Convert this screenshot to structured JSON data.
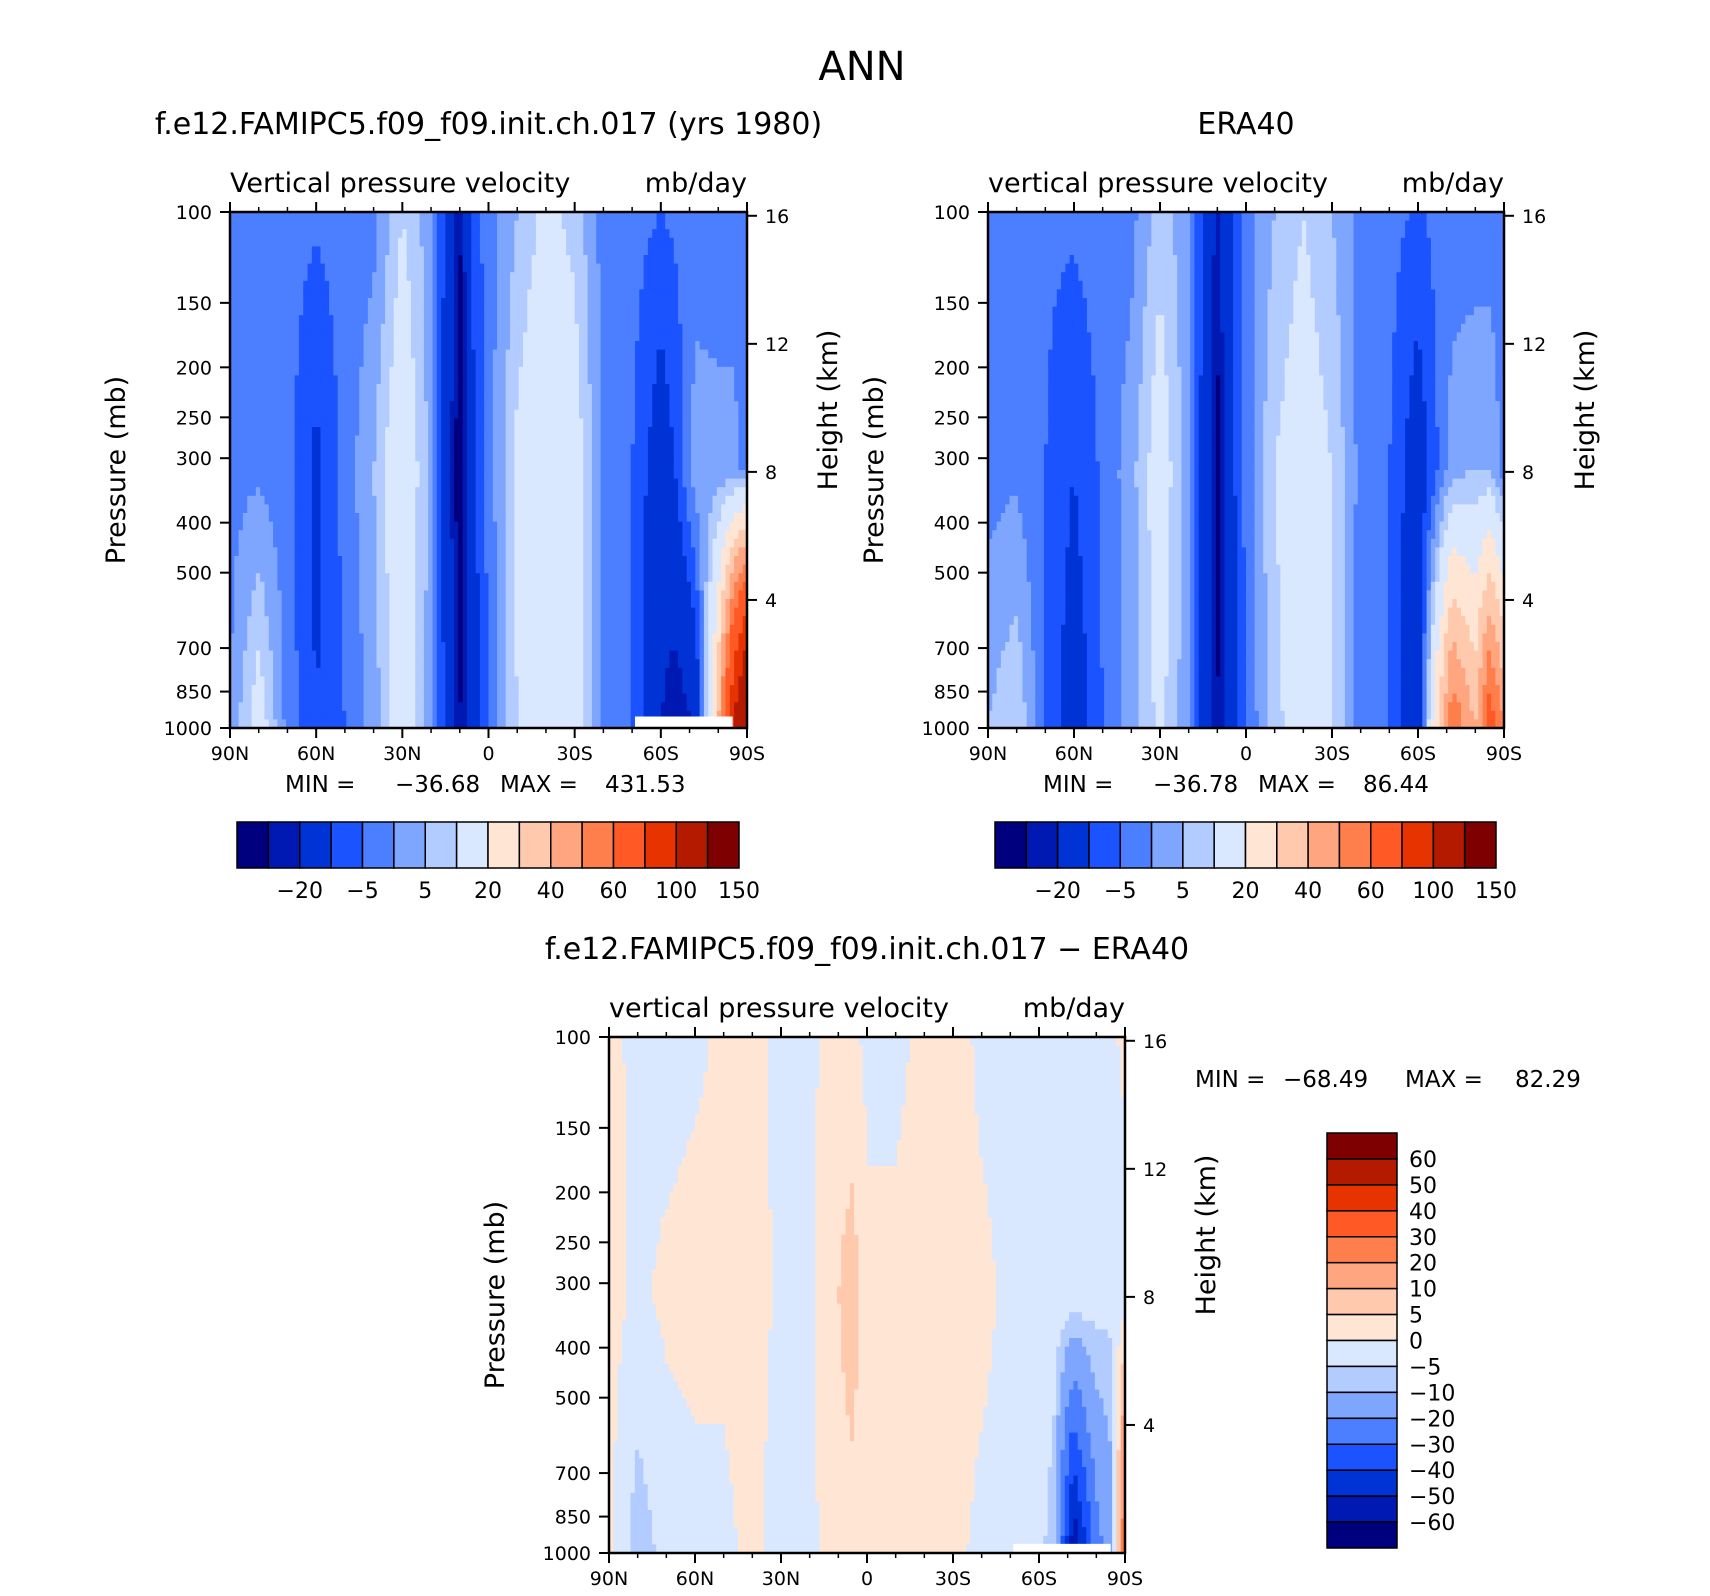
{
  "figure_title": "ANN",
  "palettes": {
    "field": [
      "#00007f",
      "#0019b2",
      "#0033d6",
      "#1a53ff",
      "#4c7fff",
      "#7fa6ff",
      "#b3ccff",
      "#d9e8ff",
      "#ffe6d4",
      "#ffc9ad",
      "#ffa680",
      "#ff7f4c",
      "#ff5a26",
      "#e63300",
      "#b31a00",
      "#7f0000"
    ],
    "diff": [
      "#00007f",
      "#0019b2",
      "#0033d6",
      "#1a53ff",
      "#4c7fff",
      "#7fa6ff",
      "#b3ccff",
      "#d9e8ff",
      "#ffe6d4",
      "#ffc9ad",
      "#ffa680",
      "#ff7f4c",
      "#ff5a26",
      "#e63300",
      "#b31a00",
      "#7f0000"
    ]
  },
  "chart_data": [
    {
      "type": "heatmap",
      "panel": "model",
      "title": "f.e12.FAMIPC5.f09_f09.init.ch.017 (yrs 1980)",
      "variable_label": "Vertical pressure velocity",
      "units_label": "mb/day",
      "xlabel": "",
      "ylabel": "Pressure (mb)",
      "ylabel_right": "Height (km)",
      "x_ticks": [
        "90N",
        "60N",
        "30N",
        "0",
        "30S",
        "60S",
        "90S"
      ],
      "x_tick_values": [
        90,
        60,
        30,
        0,
        -30,
        -60,
        -90
      ],
      "xlim": [
        90,
        -90
      ],
      "y_ticks": [
        100,
        150,
        200,
        250,
        300,
        400,
        500,
        700,
        850,
        1000
      ],
      "ylim": [
        1000,
        100
      ],
      "y_scale": "log",
      "height_ticks": [
        4,
        8,
        12,
        16
      ],
      "stats": {
        "min": "−36.68",
        "max": "431.53"
      },
      "colorbar": {
        "orientation": "horizontal",
        "labels": [
          "−20",
          "−5",
          "5",
          "20",
          "40",
          "60",
          "100",
          "150"
        ]
      },
      "columns": [
        {
          "lat": 90,
          "up": -3,
          "mid": -2,
          "low": 0
        },
        {
          "lat": 80,
          "up": -3,
          "mid": -1,
          "low": 15
        },
        {
          "lat": 70,
          "up": -3,
          "mid": -3,
          "low": -2
        },
        {
          "lat": 60,
          "up": -4,
          "mid": -12,
          "low": -10
        },
        {
          "lat": 50,
          "up": -3,
          "mid": -3,
          "low": -5
        },
        {
          "lat": 40,
          "up": -2,
          "mid": 5,
          "low": 2
        },
        {
          "lat": 30,
          "up": 10,
          "mid": 18,
          "low": 15
        },
        {
          "lat": 20,
          "up": 2,
          "mid": 3,
          "low": 2
        },
        {
          "lat": 10,
          "up": -25,
          "mid": -30,
          "low": -25
        },
        {
          "lat": 5,
          "up": -8,
          "mid": -10,
          "low": -15
        },
        {
          "lat": 0,
          "up": -2,
          "mid": -3,
          "low": -5
        },
        {
          "lat": -10,
          "up": 5,
          "mid": 12,
          "low": 10
        },
        {
          "lat": -20,
          "up": 12,
          "mid": 18,
          "low": 18
        },
        {
          "lat": -30,
          "up": 8,
          "mid": 15,
          "low": 15
        },
        {
          "lat": -40,
          "up": -2,
          "mid": -2,
          "low": -3
        },
        {
          "lat": -50,
          "up": -3,
          "mid": -5,
          "low": -5
        },
        {
          "lat": -60,
          "up": -5,
          "mid": -15,
          "low": -20
        },
        {
          "lat": -65,
          "up": -4,
          "mid": -10,
          "low": -25
        },
        {
          "lat": -72,
          "up": -3,
          "mid": 3,
          "low": -20
        },
        {
          "lat": -80,
          "up": -3,
          "mid": 2,
          "low": 40
        },
        {
          "lat": -85,
          "up": -3,
          "mid": 2,
          "low": 100
        },
        {
          "lat": -90,
          "up": -3,
          "mid": -2,
          "low": 150
        }
      ],
      "mask": {
        "lat_from": -51,
        "lat_to": -85,
        "p_from": 950
      }
    },
    {
      "type": "heatmap",
      "panel": "obs",
      "title": "ERA40",
      "variable_label": "vertical pressure velocity",
      "units_label": "mb/day",
      "xlabel": "",
      "ylabel": "Pressure (mb)",
      "ylabel_right": "Height (km)",
      "x_ticks": [
        "90N",
        "60N",
        "30N",
        "0",
        "30S",
        "60S",
        "90S"
      ],
      "x_tick_values": [
        90,
        60,
        30,
        0,
        -30,
        -60,
        -90
      ],
      "xlim": [
        90,
        -90
      ],
      "y_ticks": [
        100,
        150,
        200,
        250,
        300,
        400,
        500,
        700,
        850,
        1000
      ],
      "ylim": [
        1000,
        100
      ],
      "y_scale": "log",
      "height_ticks": [
        4,
        8,
        12,
        16
      ],
      "stats": {
        "min": "−36.78",
        "max": "86.44"
      },
      "colorbar": {
        "orientation": "horizontal",
        "labels": [
          "−20",
          "−5",
          "5",
          "20",
          "40",
          "60",
          "100",
          "150"
        ]
      },
      "columns": [
        {
          "lat": 90,
          "up": -3,
          "mid": -2,
          "low": 5
        },
        {
          "lat": 80,
          "up": -3,
          "mid": -1,
          "low": 10
        },
        {
          "lat": 70,
          "up": -4,
          "mid": -5,
          "low": -5
        },
        {
          "lat": 60,
          "up": -4,
          "mid": -10,
          "low": -15
        },
        {
          "lat": 50,
          "up": -3,
          "mid": -4,
          "low": -5
        },
        {
          "lat": 40,
          "up": -2,
          "mid": 3,
          "low": 2
        },
        {
          "lat": 30,
          "up": 8,
          "mid": 15,
          "low": 12
        },
        {
          "lat": 20,
          "up": 1,
          "mid": 2,
          "low": 1
        },
        {
          "lat": 10,
          "up": -22,
          "mid": -28,
          "low": -25
        },
        {
          "lat": 5,
          "up": -10,
          "mid": -12,
          "low": -15
        },
        {
          "lat": 0,
          "up": -2,
          "mid": -3,
          "low": -5
        },
        {
          "lat": -10,
          "up": 5,
          "mid": 10,
          "low": 8
        },
        {
          "lat": -20,
          "up": 10,
          "mid": 15,
          "low": 15
        },
        {
          "lat": -30,
          "up": 5,
          "mid": 10,
          "low": 10
        },
        {
          "lat": -40,
          "up": -2,
          "mid": -2,
          "low": -3
        },
        {
          "lat": -50,
          "up": -3,
          "mid": -5,
          "low": -5
        },
        {
          "lat": -60,
          "up": -6,
          "mid": -15,
          "low": -18
        },
        {
          "lat": -65,
          "up": -4,
          "mid": -8,
          "low": 20
        },
        {
          "lat": -72,
          "up": -3,
          "mid": 3,
          "low": 60
        },
        {
          "lat": -80,
          "up": -3,
          "mid": 5,
          "low": 40
        },
        {
          "lat": -85,
          "up": -3,
          "mid": 5,
          "low": 70
        },
        {
          "lat": -90,
          "up": -3,
          "mid": -2,
          "low": 50
        }
      ]
    },
    {
      "type": "heatmap",
      "panel": "difference",
      "title": "f.e12.FAMIPC5.f09_f09.init.ch.017 − ERA40",
      "variable_label": "vertical pressure velocity",
      "units_label": "mb/day",
      "xlabel": "",
      "ylabel": "Pressure (mb)",
      "ylabel_right": "Height (km)",
      "x_ticks": [
        "90N",
        "60N",
        "30N",
        "0",
        "30S",
        "60S",
        "90S"
      ],
      "x_tick_values": [
        90,
        60,
        30,
        0,
        -30,
        -60,
        -90
      ],
      "xlim": [
        90,
        -90
      ],
      "y_ticks": [
        100,
        150,
        200,
        250,
        300,
        400,
        500,
        700,
        850,
        1000
      ],
      "ylim": [
        1000,
        100
      ],
      "y_scale": "log",
      "height_ticks": [
        4,
        8,
        12,
        16
      ],
      "stats": {
        "min": "−68.49",
        "max": "82.29"
      },
      "colorbar": {
        "orientation": "vertical",
        "labels": [
          "60",
          "50",
          "40",
          "30",
          "20",
          "10",
          "5",
          "0",
          "−5",
          "−10",
          "−20",
          "−30",
          "−40",
          "−50",
          "−60"
        ]
      },
      "columns": [
        {
          "lat": 90,
          "up": 1,
          "mid": 2,
          "low": 1
        },
        {
          "lat": 80,
          "up": -1,
          "mid": -1,
          "low": -8
        },
        {
          "lat": 70,
          "up": -2,
          "mid": 1,
          "low": -3
        },
        {
          "lat": 60,
          "up": -1,
          "mid": 2,
          "low": -2
        },
        {
          "lat": 50,
          "up": 1,
          "mid": 1,
          "low": -1
        },
        {
          "lat": 40,
          "up": 1,
          "mid": 2,
          "low": 1
        },
        {
          "lat": 30,
          "up": -1,
          "mid": -1,
          "low": -2
        },
        {
          "lat": 20,
          "up": -1,
          "mid": -1,
          "low": -1
        },
        {
          "lat": 10,
          "up": 2,
          "mid": 5,
          "low": 2
        },
        {
          "lat": 5,
          "up": 1,
          "mid": 8,
          "low": 3
        },
        {
          "lat": 0,
          "up": -1,
          "mid": 1,
          "low": 2
        },
        {
          "lat": -10,
          "up": -1,
          "mid": 1,
          "low": 2
        },
        {
          "lat": -20,
          "up": 1,
          "mid": 2,
          "low": 1
        },
        {
          "lat": -30,
          "up": 2,
          "mid": 2,
          "low": 1
        },
        {
          "lat": -40,
          "up": -1,
          "mid": 1,
          "low": -1
        },
        {
          "lat": -50,
          "up": -1,
          "mid": -1,
          "low": -1
        },
        {
          "lat": -60,
          "up": -1,
          "mid": -2,
          "low": -3
        },
        {
          "lat": -65,
          "up": -1,
          "mid": -1,
          "low": -8
        },
        {
          "lat": -72,
          "up": -1,
          "mid": -1,
          "low": -60
        },
        {
          "lat": -80,
          "up": -1,
          "mid": -2,
          "low": -25
        },
        {
          "lat": -85,
          "up": -1,
          "mid": -3,
          "low": -15
        },
        {
          "lat": -90,
          "up": 1,
          "mid": -2,
          "low": 30
        }
      ],
      "mask": {
        "lat_from": -51,
        "lat_to": -85,
        "p_from": 960
      }
    }
  ]
}
